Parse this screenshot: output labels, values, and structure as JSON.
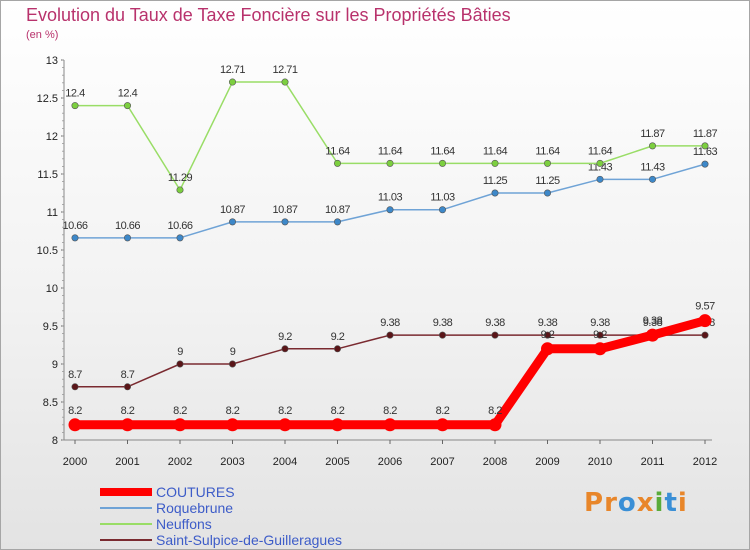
{
  "logo": {
    "text": "Proxiti",
    "letters": [
      "P",
      "r",
      "o",
      "x",
      "i",
      "t",
      "i"
    ],
    "colors": [
      "#e8862a",
      "#e8862a",
      "#3a8fd6",
      "#e8862a",
      "#5aab3a",
      "#3a8fd6",
      "#e8862a"
    ]
  },
  "chart_data": {
    "type": "line",
    "title": "Evolution du Taux de Taxe Foncière sur les Propriétés Bâties",
    "subtitle": "(en %)",
    "xlabel": "",
    "ylabel": "",
    "x": [
      "2000",
      "2001",
      "2002",
      "2003",
      "2004",
      "2005",
      "2006",
      "2007",
      "2008",
      "2009",
      "2010",
      "2011",
      "2012"
    ],
    "ylim": [
      8,
      13
    ],
    "yticks": [
      "8",
      "8.5",
      "9",
      "9.5",
      "10",
      "10.5",
      "11",
      "11.5",
      "12",
      "12.5",
      "13"
    ],
    "grid": false,
    "legend_position": "bottom-left",
    "series": [
      {
        "name": "COUTURES",
        "color": "#ff0000",
        "values": [
          8.2,
          8.2,
          8.2,
          8.2,
          8.2,
          8.2,
          8.2,
          8.2,
          8.2,
          9.2,
          9.2,
          9.38,
          9.57
        ],
        "labels": [
          "8.2",
          "8.2",
          "8.2",
          "8.2",
          "8.2",
          "8.2",
          "8.2",
          "8.2",
          "8.2",
          "9.2",
          "9.2",
          "9.38",
          "9.57"
        ]
      },
      {
        "name": "Roquebrune",
        "color": "#6fa3d6",
        "values": [
          10.66,
          10.66,
          10.66,
          10.87,
          10.87,
          10.87,
          11.03,
          11.03,
          11.25,
          11.25,
          11.43,
          11.43,
          11.63
        ],
        "labels": [
          "10.66",
          "10.66",
          "10.66",
          "10.87",
          "10.87",
          "10.87",
          "11.03",
          "11.03",
          "11.25",
          "11.25",
          "11.43",
          "11.43",
          "11.63"
        ]
      },
      {
        "name": "Neuffons",
        "color": "#99dd66",
        "values": [
          12.4,
          12.4,
          11.29,
          12.71,
          12.71,
          11.64,
          11.64,
          11.64,
          11.64,
          11.64,
          11.64,
          11.87,
          11.87
        ],
        "labels": [
          "12.4",
          "12.4",
          "11.29",
          "12.71",
          "12.71",
          "11.64",
          "11.64",
          "11.64",
          "11.64",
          "11.64",
          "11.64",
          "11.87",
          "11.87"
        ]
      },
      {
        "name": "Saint-Sulpice-de-Guilleragues",
        "color": "#7a2a30",
        "values": [
          8.7,
          8.7,
          9,
          9,
          9.2,
          9.2,
          9.38,
          9.38,
          9.38,
          9.38,
          9.38,
          9.38,
          9.38
        ],
        "labels": [
          "8.7",
          "8.7",
          "9",
          "9",
          "9.2",
          "9.2",
          "9.38",
          "9.38",
          "9.38",
          "9.38",
          "9.38",
          "9.38",
          "9.38"
        ]
      }
    ]
  }
}
